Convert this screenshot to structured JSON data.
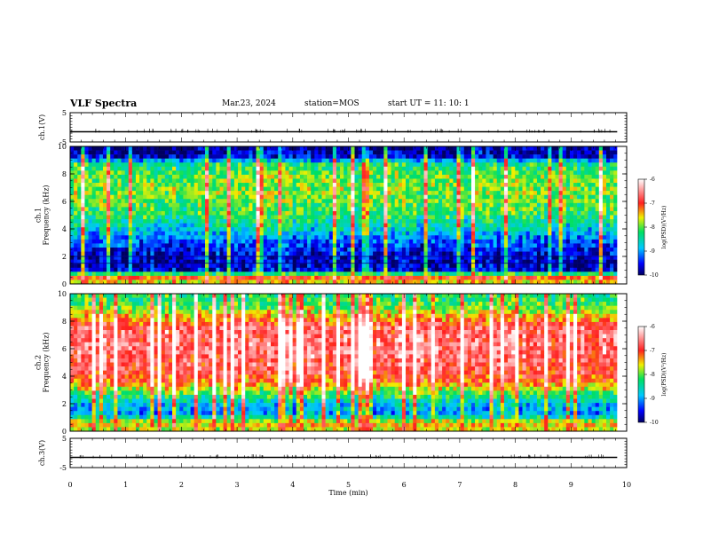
{
  "header": {
    "title": "VLF Spectra",
    "date": "Mar.23, 2024",
    "station": "station=MOS",
    "start": "start UT = 11: 10: 1"
  },
  "chart_data": [
    {
      "type": "line",
      "panel": "channel-1 waveform",
      "ylabel": "ch.1(V)",
      "y_ticks": [
        "5",
        "-5"
      ],
      "ylim": [
        -5,
        5
      ],
      "value_level": -1.5,
      "color": "#000000"
    },
    {
      "type": "heatmap",
      "panel": "channel-1 spectrogram",
      "ylabel": "ch.1\nFrequency (kHz)",
      "y_ticks": [
        "0",
        "2",
        "4",
        "6",
        "8",
        "10"
      ],
      "ylim": [
        0,
        10
      ],
      "xlim": [
        0,
        9.83
      ],
      "colorbar": {
        "label": "log(PSD)(V²/Hz)",
        "ticks": [
          "-6",
          "-7",
          "-8",
          "-9",
          "-10"
        ],
        "range": [
          -10,
          -6
        ]
      },
      "profile": [
        {
          "f": 0.0,
          "v": -7.8
        },
        {
          "f": 0.5,
          "v": -7.0
        },
        {
          "f": 1.0,
          "v": -9.6
        },
        {
          "f": 1.6,
          "v": -9.8
        },
        {
          "f": 2.2,
          "v": -9.6
        },
        {
          "f": 3.0,
          "v": -9.3
        },
        {
          "f": 4.0,
          "v": -8.7
        },
        {
          "f": 5.0,
          "v": -8.2
        },
        {
          "f": 6.0,
          "v": -8.0
        },
        {
          "f": 7.0,
          "v": -7.9
        },
        {
          "f": 8.0,
          "v": -8.0
        },
        {
          "f": 8.8,
          "v": -8.4
        },
        {
          "f": 9.2,
          "v": -9.6
        },
        {
          "f": 10.0,
          "v": -10.0
        }
      ],
      "horizontal_lines_khz": [
        1.5,
        2.0
      ]
    },
    {
      "type": "heatmap",
      "panel": "channel-2 spectrogram",
      "ylabel": "ch.2\nFrequency (kHz)",
      "y_ticks": [
        "0",
        "2",
        "4",
        "6",
        "8",
        "10"
      ],
      "ylim": [
        0,
        10
      ],
      "xlim": [
        0,
        9.83
      ],
      "colorbar": {
        "label": "log(PSD)(V²/Hz)",
        "ticks": [
          "-6",
          "-7",
          "-8",
          "-9",
          "-10"
        ],
        "range": [
          -10,
          -6
        ]
      },
      "profile": [
        {
          "f": 0.0,
          "v": -7.8
        },
        {
          "f": 0.6,
          "v": -7.4
        },
        {
          "f": 1.2,
          "v": -9.0
        },
        {
          "f": 2.0,
          "v": -8.8
        },
        {
          "f": 2.8,
          "v": -8.0
        },
        {
          "f": 3.5,
          "v": -7.2
        },
        {
          "f": 4.5,
          "v": -6.8
        },
        {
          "f": 6.0,
          "v": -6.6
        },
        {
          "f": 7.5,
          "v": -6.7
        },
        {
          "f": 8.2,
          "v": -7.3
        },
        {
          "f": 9.0,
          "v": -8.0
        },
        {
          "f": 10.0,
          "v": -8.3
        }
      ]
    },
    {
      "type": "line",
      "panel": "channel-3 waveform",
      "ylabel": "ch.3(V)",
      "y_ticks": [
        "5",
        "-5"
      ],
      "ylim": [
        -5,
        5
      ],
      "value_level": -1.5,
      "color": "#000000"
    }
  ],
  "time_axis": {
    "xlabel": "Time  (min)",
    "ticks": [
      "0",
      "1",
      "2",
      "3",
      "4",
      "5",
      "6",
      "7",
      "8",
      "9",
      "10"
    ],
    "xlim": [
      0,
      10
    ]
  }
}
